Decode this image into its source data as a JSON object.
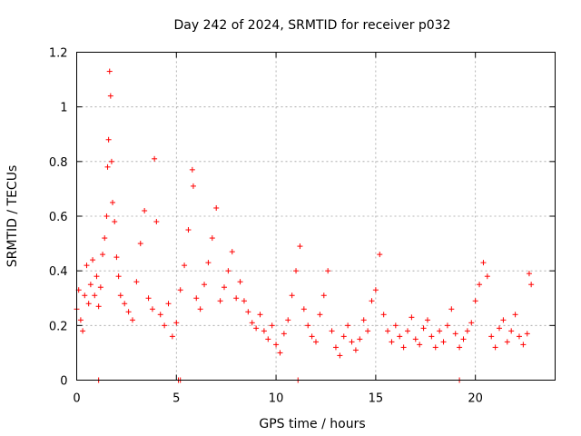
{
  "chart_data": {
    "type": "scatter",
    "title": "Day 242 of 2024, SRMTID for receiver p032",
    "xlabel": "GPS time / hours",
    "ylabel": "SRMTID / TECUs",
    "xlim": [
      0,
      24
    ],
    "ylim": [
      0,
      1.2
    ],
    "xticks": [
      0,
      5,
      10,
      15,
      20
    ],
    "xtick_labels": [
      "0",
      "5",
      "10",
      "15",
      "20"
    ],
    "yticks": [
      0,
      0.2,
      0.4,
      0.6,
      0.8,
      1.0,
      1.2
    ],
    "ytick_labels": [
      "0",
      "0.2",
      "0.4",
      "0.6",
      "0.8",
      "1",
      "1.2"
    ],
    "grid": true,
    "marker": "+",
    "marker_color": "#ff0000",
    "series": [
      {
        "name": "SRMTID",
        "x": [
          0.0,
          0.1,
          0.2,
          0.3,
          0.4,
          0.5,
          0.6,
          0.7,
          0.8,
          0.9,
          1.0,
          1.1,
          1.2,
          1.3,
          1.4,
          1.5,
          1.55,
          1.6,
          1.65,
          1.7,
          1.75,
          1.8,
          1.9,
          2.0,
          2.1,
          2.2,
          2.4,
          2.6,
          2.8,
          3.0,
          3.2,
          3.4,
          3.6,
          3.8,
          3.9,
          4.0,
          4.2,
          4.4,
          4.6,
          4.8,
          5.0,
          5.2,
          5.4,
          5.6,
          5.8,
          5.85,
          6.0,
          6.2,
          6.4,
          6.6,
          6.8,
          7.0,
          7.2,
          7.4,
          7.6,
          7.8,
          8.0,
          8.2,
          8.4,
          8.6,
          8.8,
          9.0,
          9.2,
          9.4,
          9.6,
          9.8,
          10.0,
          10.2,
          10.4,
          10.6,
          10.8,
          11.0,
          11.2,
          11.4,
          11.6,
          11.8,
          12.0,
          12.2,
          12.4,
          12.6,
          12.8,
          13.0,
          13.2,
          13.4,
          13.6,
          13.8,
          14.0,
          14.2,
          14.4,
          14.6,
          14.8,
          15.0,
          15.2,
          15.4,
          15.6,
          15.8,
          16.0,
          16.2,
          16.4,
          16.6,
          16.8,
          17.0,
          17.2,
          17.4,
          17.6,
          17.8,
          18.0,
          18.2,
          18.4,
          18.6,
          18.8,
          19.0,
          19.2,
          19.4,
          19.6,
          19.8,
          20.0,
          20.2,
          20.4,
          20.6,
          20.8,
          21.0,
          21.2,
          21.4,
          21.6,
          21.8,
          22.0,
          22.2,
          22.4,
          22.6,
          22.7,
          22.8,
          1.1,
          5.1,
          5.2,
          11.1,
          19.2
        ],
        "y": [
          0.26,
          0.33,
          0.22,
          0.18,
          0.31,
          0.42,
          0.28,
          0.35,
          0.44,
          0.31,
          0.38,
          0.27,
          0.34,
          0.46,
          0.52,
          0.6,
          0.78,
          0.88,
          1.13,
          1.04,
          0.8,
          0.65,
          0.58,
          0.45,
          0.38,
          0.31,
          0.28,
          0.25,
          0.22,
          0.36,
          0.5,
          0.62,
          0.3,
          0.26,
          0.81,
          0.58,
          0.24,
          0.2,
          0.28,
          0.16,
          0.21,
          0.33,
          0.42,
          0.55,
          0.77,
          0.71,
          0.3,
          0.26,
          0.35,
          0.43,
          0.52,
          0.63,
          0.29,
          0.34,
          0.4,
          0.47,
          0.3,
          0.36,
          0.29,
          0.25,
          0.21,
          0.19,
          0.24,
          0.18,
          0.15,
          0.2,
          0.13,
          0.1,
          0.17,
          0.22,
          0.31,
          0.4,
          0.49,
          0.26,
          0.2,
          0.16,
          0.14,
          0.24,
          0.31,
          0.4,
          0.18,
          0.12,
          0.09,
          0.16,
          0.2,
          0.14,
          0.11,
          0.15,
          0.22,
          0.18,
          0.29,
          0.33,
          0.46,
          0.24,
          0.18,
          0.14,
          0.2,
          0.16,
          0.12,
          0.18,
          0.23,
          0.15,
          0.13,
          0.19,
          0.22,
          0.16,
          0.12,
          0.18,
          0.14,
          0.2,
          0.26,
          0.17,
          0.12,
          0.15,
          0.18,
          0.21,
          0.29,
          0.35,
          0.43,
          0.38,
          0.16,
          0.12,
          0.19,
          0.22,
          0.14,
          0.18,
          0.24,
          0.16,
          0.13,
          0.17,
          0.39,
          0.35,
          0.0,
          0.0,
          0.0,
          0.0,
          0.0
        ]
      }
    ]
  }
}
